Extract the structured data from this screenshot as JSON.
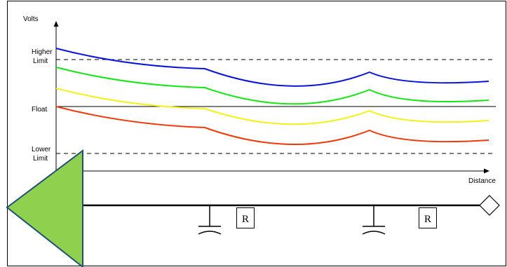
{
  "labels": {
    "volts": "Volts",
    "higher_limit_line1": "Higher",
    "higher_limit_line2": "Limit",
    "float": "Float",
    "lower_limit_line1": "Lower",
    "lower_limit_line2": "Limit",
    "distance": "Distance",
    "resistor_1": "R",
    "resistor_2": "R"
  },
  "colors": {
    "frame": "#000000",
    "curve_blue": "#0a14d8",
    "curve_green": "#14e614",
    "curve_yellow": "#f2f21a",
    "curve_red": "#f03a0a",
    "source_triangle_fill": "#8fd14f",
    "source_triangle_stroke": "#1f4e79",
    "reference_dashed": "#000000"
  },
  "icons": {
    "source": "triangle-source-icon",
    "ground": "capacitor-ground-icon",
    "terminal": "diamond-terminal-icon"
  }
}
